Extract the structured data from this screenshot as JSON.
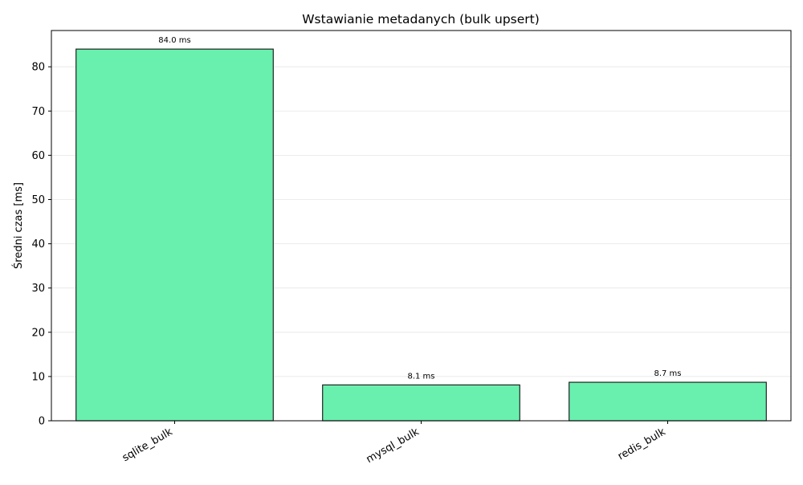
{
  "chart_data": {
    "type": "bar",
    "title": "Wstawianie metadanych (bulk upsert)",
    "xlabel": "",
    "ylabel": "Średni czas [ms]",
    "categories": [
      "sqlite_bulk",
      "mysql_bulk",
      "redis_bulk"
    ],
    "values": [
      84.0,
      8.1,
      8.7
    ],
    "value_labels": [
      "84.0 ms",
      "8.1 ms",
      "8.7 ms"
    ],
    "ylim": [
      0,
      88.2
    ],
    "yticks": [
      0,
      10,
      20,
      30,
      40,
      50,
      60,
      70,
      80
    ],
    "ytick_labels": [
      "0",
      "10",
      "20",
      "30",
      "40",
      "50",
      "60",
      "70",
      "80"
    ],
    "grid": "y",
    "legend": "none",
    "colors": {
      "bar_fill": "#69f0ae",
      "bar_edge": "#222222"
    }
  }
}
